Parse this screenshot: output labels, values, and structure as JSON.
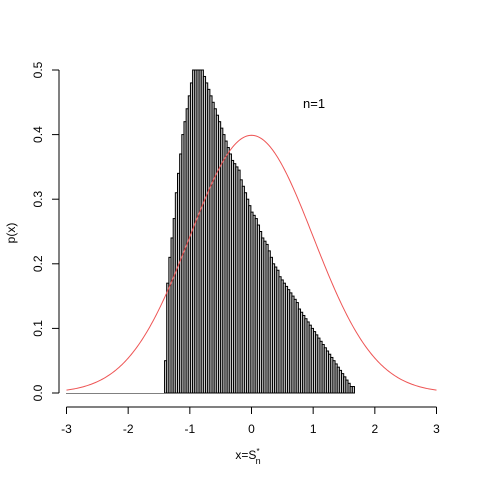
{
  "chart_data": {
    "type": "bar",
    "xlabel_main": "x=S",
    "xlabel_sub": "n",
    "xlabel_sup": "*",
    "ylabel": "p(x)",
    "annotation": "n=1",
    "xlim": [
      -3.3,
      3.3
    ],
    "ylim": [
      0,
      0.5
    ],
    "x_ticks": [
      -3,
      -2,
      -1,
      0,
      1,
      2,
      3
    ],
    "y_ticks": [
      0.0,
      0.1,
      0.2,
      0.3,
      0.4,
      0.5
    ],
    "x_tick_labels": [
      "-3",
      "-2",
      "-1",
      "0",
      "1",
      "2",
      "3"
    ],
    "y_tick_labels": [
      "0.0",
      "0.1",
      "0.2",
      "0.3",
      "0.4",
      "0.5"
    ],
    "grid": false,
    "colors": {
      "bar_fill": "#cccccc",
      "bar_stroke": "#000000",
      "curve": "#ee5555",
      "axis": "#000000"
    },
    "histogram": {
      "bin_start": -1.41,
      "bin_width": 0.035,
      "values": [
        0.05,
        0.17,
        0.21,
        0.24,
        0.27,
        0.31,
        0.34,
        0.37,
        0.4,
        0.42,
        0.44,
        0.46,
        0.48,
        0.5,
        0.5,
        0.5,
        0.5,
        0.5,
        0.49,
        0.48,
        0.47,
        0.46,
        0.45,
        0.44,
        0.43,
        0.42,
        0.41,
        0.4,
        0.39,
        0.38,
        0.37,
        0.36,
        0.355,
        0.35,
        0.345,
        0.33,
        0.32,
        0.31,
        0.3,
        0.29,
        0.28,
        0.275,
        0.27,
        0.26,
        0.25,
        0.24,
        0.235,
        0.23,
        0.22,
        0.21,
        0.2,
        0.195,
        0.19,
        0.18,
        0.175,
        0.17,
        0.165,
        0.16,
        0.155,
        0.15,
        0.145,
        0.14,
        0.13,
        0.125,
        0.12,
        0.115,
        0.11,
        0.105,
        0.1,
        0.095,
        0.09,
        0.085,
        0.08,
        0.075,
        0.07,
        0.065,
        0.06,
        0.055,
        0.05,
        0.045,
        0.04,
        0.035,
        0.03,
        0.025,
        0.02,
        0.015,
        0.01,
        0.01
      ]
    },
    "series": [
      {
        "type": "line",
        "function": "standard-normal-density",
        "x_range": [
          -3,
          3
        ]
      }
    ]
  }
}
